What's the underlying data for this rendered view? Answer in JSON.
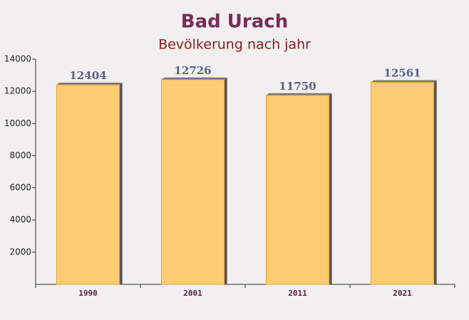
{
  "chart_data": {
    "type": "bar",
    "title": "Bad Urach",
    "subtitle": "Bevölkerung nach jahr",
    "categories": [
      "1990",
      "2001",
      "2011",
      "2021"
    ],
    "values": [
      12404,
      12726,
      11750,
      12561
    ],
    "color": "#fdc865",
    "ylim": [
      0,
      14000
    ],
    "yticks": [
      2000,
      4000,
      6000,
      8000,
      10000,
      12000,
      14000
    ]
  }
}
